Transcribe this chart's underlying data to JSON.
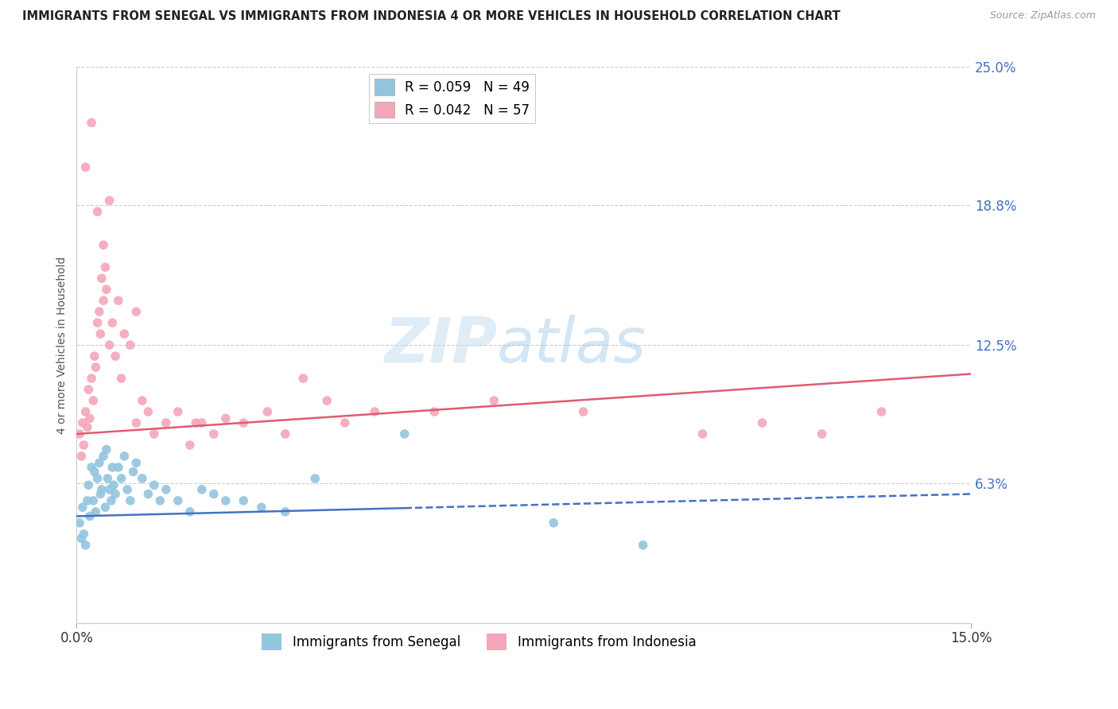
{
  "title": "IMMIGRANTS FROM SENEGAL VS IMMIGRANTS FROM INDONESIA 4 OR MORE VEHICLES IN HOUSEHOLD CORRELATION CHART",
  "source": "Source: ZipAtlas.com",
  "ylabel": "4 or more Vehicles in Household",
  "x_min": 0.0,
  "x_max": 15.0,
  "y_min": 0.0,
  "y_max": 25.0,
  "x_tick_labels": [
    "0.0%",
    "15.0%"
  ],
  "x_tick_values": [
    0.0,
    15.0
  ],
  "y_tick_labels_right": [
    "6.3%",
    "12.5%",
    "18.8%",
    "25.0%"
  ],
  "y_tick_values_right": [
    6.3,
    12.5,
    18.8,
    25.0
  ],
  "legend_R_senegal": "R = 0.059",
  "legend_N_senegal": "N = 49",
  "legend_R_indonesia": "R = 0.042",
  "legend_N_indonesia": "N = 57",
  "watermark_zip": "ZIP",
  "watermark_atlas": "atlas",
  "senegal_color": "#92c5de",
  "indonesia_color": "#f4a6b8",
  "senegal_line_color": "#4472c4",
  "indonesia_line_color": "#e05a72",
  "senegal_line_y0": 4.8,
  "senegal_line_y15": 5.8,
  "indonesia_line_y0": 8.5,
  "indonesia_line_y15": 11.2,
  "senegal_solid_end_x": 5.5,
  "bottom_legend_senegal": "Immigrants from Senegal",
  "bottom_legend_indonesia": "Immigrants from Indonesia",
  "senegal_x": [
    0.05,
    0.08,
    0.1,
    0.12,
    0.15,
    0.18,
    0.2,
    0.22,
    0.25,
    0.28,
    0.3,
    0.32,
    0.35,
    0.38,
    0.4,
    0.42,
    0.45,
    0.48,
    0.5,
    0.52,
    0.55,
    0.58,
    0.6,
    0.62,
    0.65,
    0.7,
    0.75,
    0.8,
    0.85,
    0.9,
    0.95,
    1.0,
    1.1,
    1.2,
    1.3,
    1.4,
    1.5,
    1.7,
    1.9,
    2.1,
    2.3,
    2.5,
    2.8,
    3.1,
    3.5,
    4.0,
    5.5,
    8.0,
    9.5
  ],
  "senegal_y": [
    4.5,
    3.8,
    5.2,
    4.0,
    3.5,
    5.5,
    6.2,
    4.8,
    7.0,
    5.5,
    6.8,
    5.0,
    6.5,
    7.2,
    5.8,
    6.0,
    7.5,
    5.2,
    7.8,
    6.5,
    6.0,
    5.5,
    7.0,
    6.2,
    5.8,
    7.0,
    6.5,
    7.5,
    6.0,
    5.5,
    6.8,
    7.2,
    6.5,
    5.8,
    6.2,
    5.5,
    6.0,
    5.5,
    5.0,
    6.0,
    5.8,
    5.5,
    5.5,
    5.2,
    5.0,
    6.5,
    8.5,
    4.5,
    3.5
  ],
  "indonesia_x": [
    0.05,
    0.08,
    0.1,
    0.12,
    0.15,
    0.18,
    0.2,
    0.22,
    0.25,
    0.28,
    0.3,
    0.32,
    0.35,
    0.38,
    0.4,
    0.42,
    0.45,
    0.48,
    0.5,
    0.55,
    0.6,
    0.65,
    0.7,
    0.75,
    0.8,
    0.9,
    1.0,
    1.1,
    1.2,
    1.3,
    1.5,
    1.7,
    1.9,
    2.1,
    2.3,
    2.5,
    2.8,
    3.2,
    3.5,
    3.8,
    4.2,
    4.5,
    5.0,
    6.0,
    7.0,
    8.5,
    10.5,
    11.5,
    12.5,
    13.5,
    0.15,
    0.25,
    0.35,
    0.45,
    0.55,
    1.0,
    2.0
  ],
  "indonesia_y": [
    8.5,
    7.5,
    9.0,
    8.0,
    9.5,
    8.8,
    10.5,
    9.2,
    11.0,
    10.0,
    12.0,
    11.5,
    13.5,
    14.0,
    13.0,
    15.5,
    14.5,
    16.0,
    15.0,
    12.5,
    13.5,
    12.0,
    14.5,
    11.0,
    13.0,
    12.5,
    9.0,
    10.0,
    9.5,
    8.5,
    9.0,
    9.5,
    8.0,
    9.0,
    8.5,
    9.2,
    9.0,
    9.5,
    8.5,
    11.0,
    10.0,
    9.0,
    9.5,
    9.5,
    10.0,
    9.5,
    8.5,
    9.0,
    8.5,
    9.5,
    20.5,
    22.5,
    18.5,
    17.0,
    19.0,
    14.0,
    9.0
  ]
}
